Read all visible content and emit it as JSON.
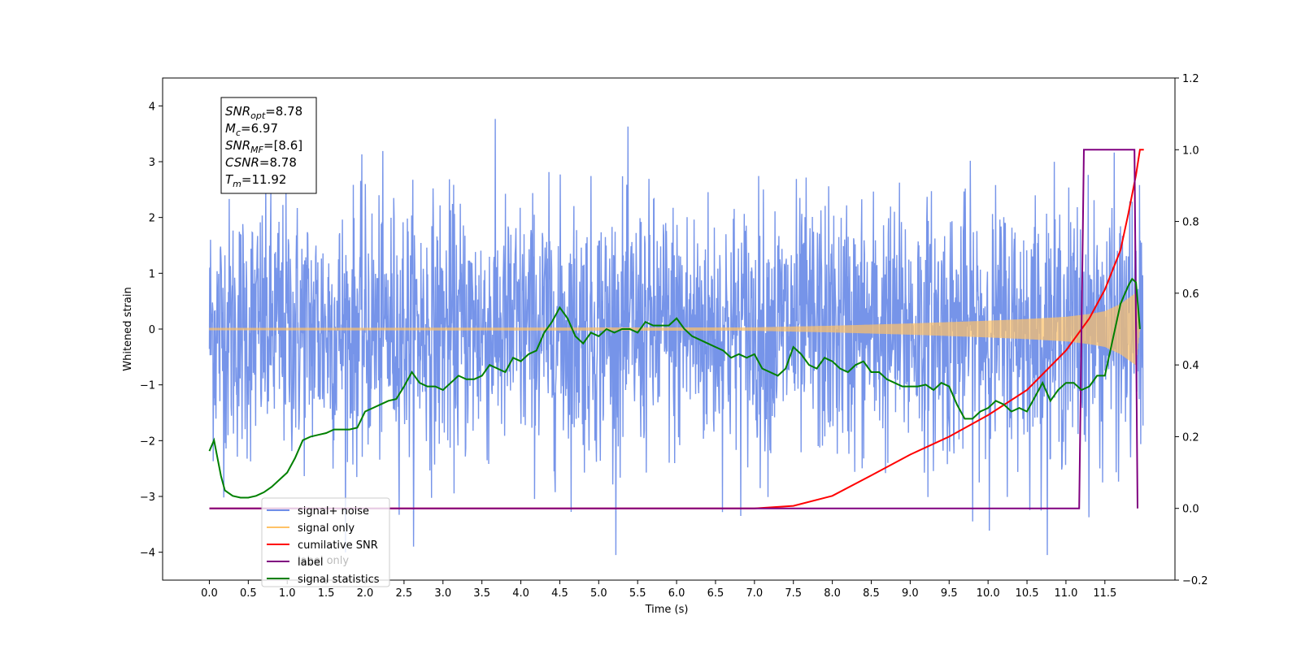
{
  "chart_data": {
    "type": "line",
    "xlabel": "Time (s)",
    "ylabel": "Whitened strain",
    "xlim": [
      -0.6,
      12.4
    ],
    "ylim": [
      -4.5,
      4.5
    ],
    "y2lim": [
      -0.2,
      1.2
    ],
    "x_ticks": [
      0.0,
      0.5,
      1.0,
      1.5,
      2.0,
      2.5,
      3.0,
      3.5,
      4.0,
      4.5,
      5.0,
      5.5,
      6.0,
      6.5,
      7.0,
      7.5,
      8.0,
      8.5,
      9.0,
      9.5,
      10.0,
      10.5,
      11.0,
      11.5
    ],
    "x_tick_labels": [
      "0.0",
      "0.5",
      "1.0",
      "1.5",
      "2.0",
      "2.5",
      "3.0",
      "3.5",
      "4.0",
      "4.5",
      "5.0",
      "5.5",
      "6.0",
      "6.5",
      "7.0",
      "7.5",
      "8.0",
      "8.5",
      "9.0",
      "9.5",
      "10.0",
      "10.5",
      "11.0",
      "11.5"
    ],
    "y_ticks": [
      -4,
      -3,
      -2,
      -1,
      0,
      1,
      2,
      3,
      4
    ],
    "y_tick_labels": [
      "−4",
      "−3",
      "−2",
      "−1",
      "0",
      "1",
      "2",
      "3",
      "4"
    ],
    "y2_ticks": [
      -0.2,
      0.0,
      0.2,
      0.4,
      0.6,
      0.8,
      1.0,
      1.2
    ],
    "y2_tick_labels": [
      "−0.2",
      "0.0",
      "0.2",
      "0.4",
      "0.6",
      "0.8",
      "1.0",
      "1.2"
    ],
    "grid": false,
    "legend_position": "lower-left",
    "legend": [
      {
        "label": "signal+ noise",
        "color": "#6f8ee8"
      },
      {
        "label": "signal only",
        "color": "#ffc266"
      },
      {
        "label": "cumilative SNR",
        "color": "#ff0000"
      },
      {
        "label": "label",
        "color": "#800080"
      },
      {
        "label": "signal statistics",
        "color": "#008000"
      }
    ],
    "legend_hidden_text": "label only",
    "info_box": [
      {
        "base": "SNR",
        "sub": "opt",
        "rest": "=8.78"
      },
      {
        "base": "M",
        "sub": "c",
        "rest": "=6.97"
      },
      {
        "base": "SNR",
        "sub": "MF",
        "rest": "=[8.6]"
      },
      {
        "base": "CSNR",
        "sub": "",
        "rest": "=8.78"
      },
      {
        "base": "T",
        "sub": "m",
        "rest": "=11.92"
      }
    ],
    "series": [
      {
        "name": "signal+ noise",
        "axis": "left",
        "color": "#6f8ee8",
        "x_range": [
          0.0,
          11.99
        ],
        "y_range": [
          -4.05,
          4.12
        ]
      },
      {
        "name": "signal only",
        "axis": "left",
        "color": "#ffc266",
        "envelope_x": [
          0.0,
          7.0,
          8.0,
          9.0,
          10.0,
          10.5,
          11.0,
          11.3,
          11.5,
          11.7,
          11.8,
          11.9,
          11.95
        ],
        "envelope_y": [
          0.02,
          0.03,
          0.06,
          0.1,
          0.15,
          0.18,
          0.22,
          0.27,
          0.32,
          0.45,
          0.55,
          0.65,
          0.0
        ]
      },
      {
        "name": "cumilative SNR",
        "axis": "right",
        "color": "#ff0000",
        "x": [
          0.0,
          7.0,
          7.5,
          8.0,
          8.5,
          9.0,
          9.5,
          10.0,
          10.5,
          11.0,
          11.3,
          11.5,
          11.7,
          11.8,
          11.9,
          11.95,
          12.0
        ],
        "y": [
          0.0,
          0.0,
          0.007,
          0.035,
          0.092,
          0.15,
          0.2,
          0.26,
          0.33,
          0.44,
          0.53,
          0.61,
          0.72,
          0.82,
          0.93,
          1.0,
          1.0
        ]
      },
      {
        "name": "label",
        "axis": "right",
        "color": "#800080",
        "x": [
          0.0,
          11.17,
          11.23,
          11.88,
          11.92
        ],
        "y": [
          0.0,
          0.0,
          1.0,
          1.0,
          0.0
        ]
      },
      {
        "name": "signal statistics",
        "axis": "right",
        "color": "#008000",
        "x": [
          0.0,
          0.06,
          0.15,
          0.2,
          0.3,
          0.4,
          0.5,
          0.6,
          0.7,
          0.8,
          0.9,
          1.0,
          1.1,
          1.2,
          1.3,
          1.4,
          1.5,
          1.6,
          1.7,
          1.8,
          1.9,
          2.0,
          2.1,
          2.2,
          2.3,
          2.4,
          2.5,
          2.6,
          2.7,
          2.8,
          2.9,
          3.0,
          3.1,
          3.2,
          3.3,
          3.4,
          3.5,
          3.6,
          3.7,
          3.8,
          3.9,
          4.0,
          4.1,
          4.2,
          4.3,
          4.4,
          4.5,
          4.6,
          4.7,
          4.8,
          4.9,
          5.0,
          5.1,
          5.2,
          5.3,
          5.4,
          5.5,
          5.6,
          5.7,
          5.8,
          5.9,
          6.0,
          6.1,
          6.2,
          6.3,
          6.4,
          6.5,
          6.6,
          6.7,
          6.8,
          6.9,
          7.0,
          7.1,
          7.2,
          7.3,
          7.4,
          7.5,
          7.6,
          7.7,
          7.8,
          7.9,
          8.0,
          8.1,
          8.2,
          8.3,
          8.4,
          8.5,
          8.6,
          8.7,
          8.8,
          8.9,
          9.0,
          9.1,
          9.2,
          9.3,
          9.4,
          9.5,
          9.6,
          9.7,
          9.8,
          9.9,
          10.0,
          10.1,
          10.2,
          10.3,
          10.4,
          10.5,
          10.6,
          10.7,
          10.8,
          10.9,
          11.0,
          11.1,
          11.2,
          11.3,
          11.4,
          11.5,
          11.6,
          11.7,
          11.8,
          11.85,
          11.9,
          11.95
        ],
        "y": [
          0.16,
          0.19,
          0.09,
          0.05,
          0.035,
          0.03,
          0.03,
          0.035,
          0.045,
          0.06,
          0.08,
          0.1,
          0.14,
          0.19,
          0.2,
          0.205,
          0.21,
          0.22,
          0.22,
          0.22,
          0.225,
          0.27,
          0.28,
          0.29,
          0.3,
          0.305,
          0.34,
          0.38,
          0.35,
          0.34,
          0.34,
          0.33,
          0.35,
          0.37,
          0.36,
          0.36,
          0.37,
          0.4,
          0.39,
          0.38,
          0.42,
          0.41,
          0.43,
          0.44,
          0.49,
          0.52,
          0.56,
          0.53,
          0.48,
          0.46,
          0.49,
          0.48,
          0.5,
          0.49,
          0.5,
          0.5,
          0.49,
          0.52,
          0.51,
          0.51,
          0.51,
          0.53,
          0.5,
          0.48,
          0.47,
          0.46,
          0.45,
          0.44,
          0.42,
          0.43,
          0.42,
          0.43,
          0.39,
          0.38,
          0.37,
          0.39,
          0.45,
          0.43,
          0.4,
          0.39,
          0.42,
          0.41,
          0.39,
          0.38,
          0.4,
          0.41,
          0.38,
          0.38,
          0.36,
          0.35,
          0.34,
          0.34,
          0.34,
          0.345,
          0.33,
          0.35,
          0.34,
          0.29,
          0.25,
          0.25,
          0.27,
          0.28,
          0.3,
          0.29,
          0.27,
          0.28,
          0.27,
          0.31,
          0.35,
          0.3,
          0.33,
          0.35,
          0.35,
          0.33,
          0.34,
          0.37,
          0.37,
          0.47,
          0.57,
          0.62,
          0.64,
          0.63,
          0.5
        ]
      }
    ]
  }
}
